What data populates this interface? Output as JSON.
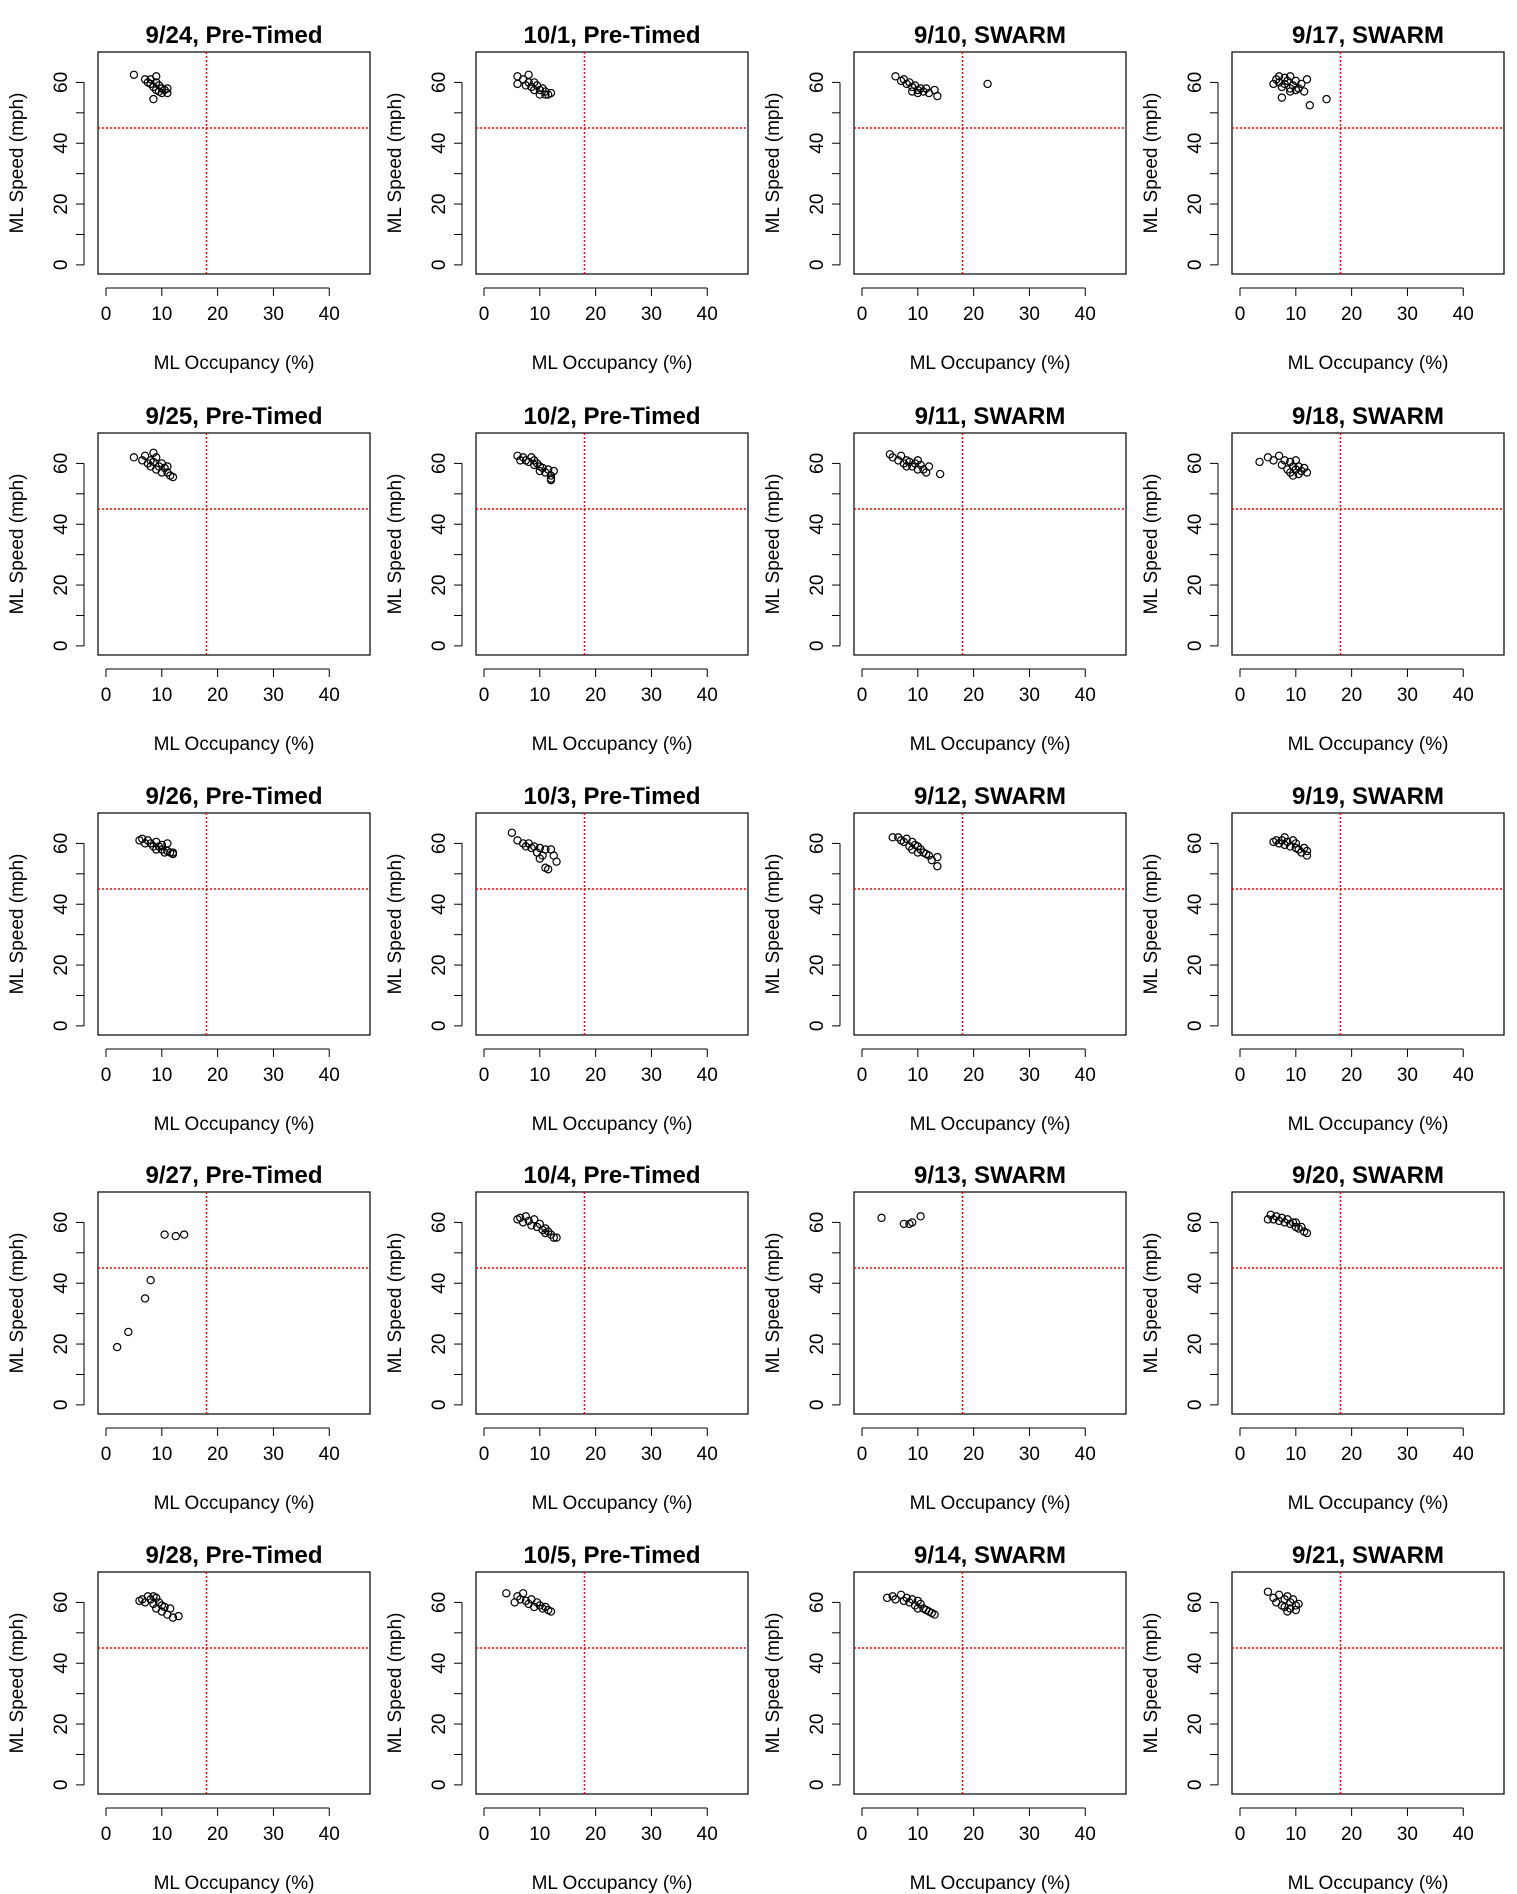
{
  "page": {
    "xlabel": "ML Occupancy (%)",
    "ylabel": "ML Speed (mph)",
    "ref_occupancy": 18,
    "ref_speed": 45,
    "ref_color": "#ff0000",
    "point_color": "#000000"
  },
  "chart_data": [
    {
      "type": "scatter",
      "title": "9/24, Pre-Timed",
      "xlabel": "ML Occupancy (%)",
      "ylabel": "ML Speed (mph)",
      "xlim": [
        0,
        47
      ],
      "ylim": [
        0,
        70
      ],
      "xticks": [
        0,
        10,
        20,
        30,
        40
      ],
      "yticks": [
        0,
        20,
        40,
        60
      ],
      "x": [
        5,
        7,
        7.5,
        8,
        8,
        8.5,
        9,
        9,
        9.5,
        9.5,
        10,
        10,
        10.5,
        11,
        11,
        8.5,
        9
      ],
      "y": [
        62.5,
        61,
        60,
        59.5,
        61,
        58.5,
        60,
        57.5,
        59,
        57,
        58,
        56.5,
        57.5,
        56.5,
        58,
        54.5,
        62
      ]
    },
    {
      "type": "scatter",
      "title": "10/1, Pre-Timed",
      "xlabel": "ML Occupancy (%)",
      "ylabel": "ML Speed (mph)",
      "xlim": [
        0,
        47
      ],
      "ylim": [
        0,
        70
      ],
      "xticks": [
        0,
        10,
        20,
        30,
        40
      ],
      "yticks": [
        0,
        20,
        40,
        60
      ],
      "x": [
        6,
        6,
        7,
        7.5,
        8,
        8,
        8.5,
        9,
        9,
        9.5,
        10,
        10,
        10.5,
        11,
        11.5,
        12,
        11
      ],
      "y": [
        62,
        59.5,
        61,
        59,
        62.5,
        60,
        58.5,
        60,
        57.5,
        59,
        57.5,
        56,
        58,
        56,
        56,
        56.5,
        57
      ]
    },
    {
      "type": "scatter",
      "title": "9/10, SWARM",
      "xlabel": "ML Occupancy (%)",
      "ylabel": "ML Speed (mph)",
      "xlim": [
        0,
        47
      ],
      "ylim": [
        0,
        70
      ],
      "xticks": [
        0,
        10,
        20,
        30,
        40
      ],
      "yticks": [
        0,
        20,
        40,
        60
      ],
      "x": [
        6,
        7,
        7.5,
        8,
        8.5,
        9,
        9.5,
        10,
        10,
        10.5,
        11,
        11.5,
        12,
        13,
        13.5,
        9,
        22.5
      ],
      "y": [
        62,
        60.5,
        61,
        59.5,
        60,
        58.5,
        59,
        57.5,
        56.5,
        58,
        57,
        58,
        56.5,
        57.5,
        55.5,
        57,
        59.5
      ]
    },
    {
      "type": "scatter",
      "title": "9/17, SWARM",
      "xlabel": "ML Occupancy (%)",
      "ylabel": "ML Speed (mph)",
      "xlim": [
        0,
        47
      ],
      "ylim": [
        0,
        70
      ],
      "xticks": [
        0,
        10,
        20,
        30,
        40
      ],
      "yticks": [
        0,
        20,
        40,
        60
      ],
      "x": [
        6,
        6.5,
        7,
        7,
        7.5,
        8,
        8,
        8.5,
        9,
        9,
        9.5,
        10,
        10,
        10.5,
        11,
        11.5,
        12,
        12.5,
        15.5,
        7.5,
        9
      ],
      "y": [
        59.5,
        61,
        60,
        62,
        58.5,
        61.5,
        59.5,
        60.5,
        58,
        62,
        59,
        60.5,
        57.5,
        58,
        59.5,
        57,
        61,
        52.5,
        54.5,
        55,
        57
      ]
    },
    {
      "type": "scatter",
      "title": "9/25, Pre-Timed",
      "xlabel": "ML Occupancy (%)",
      "ylabel": "ML Speed (mph)",
      "xlim": [
        0,
        47
      ],
      "ylim": [
        0,
        70
      ],
      "xticks": [
        0,
        10,
        20,
        30,
        40
      ],
      "yticks": [
        0,
        20,
        40,
        60
      ],
      "x": [
        5,
        6.5,
        7,
        7.5,
        8,
        8,
        8.5,
        9,
        9,
        9.5,
        10,
        10,
        10.5,
        11,
        11,
        11.5,
        12,
        8.5
      ],
      "y": [
        62,
        61,
        62.5,
        60,
        61,
        59,
        60.5,
        58,
        62,
        59,
        60,
        57,
        58.5,
        57,
        59,
        56,
        55.5,
        63.5
      ]
    },
    {
      "type": "scatter",
      "title": "10/2, Pre-Timed",
      "xlabel": "ML Occupancy (%)",
      "ylabel": "ML Speed (mph)",
      "xlim": [
        0,
        47
      ],
      "ylim": [
        0,
        70
      ],
      "xticks": [
        0,
        10,
        20,
        30,
        40
      ],
      "yticks": [
        0,
        20,
        40,
        60
      ],
      "x": [
        6,
        6.5,
        7,
        7.5,
        8,
        8.5,
        9,
        9,
        9.5,
        10,
        10,
        10.5,
        11,
        11.5,
        12,
        12.5,
        12,
        12
      ],
      "y": [
        62.5,
        61,
        62,
        61,
        60.5,
        62,
        59.5,
        61,
        60,
        59,
        57.5,
        58.5,
        57,
        58,
        56,
        57.5,
        54.5,
        55
      ]
    },
    {
      "type": "scatter",
      "title": "9/11, SWARM",
      "xlabel": "ML Occupancy (%)",
      "ylabel": "ML Speed (mph)",
      "xlim": [
        0,
        47
      ],
      "ylim": [
        0,
        70
      ],
      "xticks": [
        0,
        10,
        20,
        30,
        40
      ],
      "yticks": [
        0,
        20,
        40,
        60
      ],
      "x": [
        5,
        5.5,
        6.5,
        7,
        7.5,
        8,
        8,
        8.5,
        9,
        9.5,
        10,
        10,
        10.5,
        11,
        11.5,
        12,
        14
      ],
      "y": [
        63,
        62,
        61,
        62.5,
        60,
        61,
        59,
        60.5,
        59,
        60,
        58,
        61,
        59.5,
        58,
        57,
        59,
        56.5
      ]
    },
    {
      "type": "scatter",
      "title": "9/18, SWARM",
      "xlabel": "ML Occupancy (%)",
      "ylabel": "ML Speed (mph)",
      "xlim": [
        0,
        47
      ],
      "ylim": [
        0,
        70
      ],
      "xticks": [
        0,
        10,
        20,
        30,
        40
      ],
      "yticks": [
        0,
        20,
        40,
        60
      ],
      "x": [
        3.5,
        5,
        6,
        7,
        7.5,
        8,
        8.5,
        9,
        9,
        9.5,
        10,
        10,
        10.5,
        11,
        11.5,
        12,
        9.5,
        10.5
      ],
      "y": [
        60.5,
        62,
        61,
        62.5,
        59.5,
        61,
        58,
        60.5,
        57,
        59,
        61,
        58,
        59,
        57.5,
        58.5,
        57,
        56,
        56.5
      ]
    },
    {
      "type": "scatter",
      "title": "9/26, Pre-Timed",
      "xlabel": "ML Occupancy (%)",
      "ylabel": "ML Speed (mph)",
      "xlim": [
        0,
        47
      ],
      "ylim": [
        0,
        70
      ],
      "xticks": [
        0,
        10,
        20,
        30,
        40
      ],
      "yticks": [
        0,
        20,
        40,
        60
      ],
      "x": [
        6,
        6.5,
        7,
        7.5,
        8,
        8.5,
        9,
        9,
        9.5,
        10,
        10,
        10.5,
        11,
        11.5,
        12,
        12,
        11
      ],
      "y": [
        61,
        61.5,
        60,
        61,
        60,
        59,
        60.5,
        58,
        59,
        58,
        59.5,
        57,
        57.5,
        57,
        56.5,
        57,
        60
      ]
    },
    {
      "type": "scatter",
      "title": "10/3, Pre-Timed",
      "xlabel": "ML Occupancy (%)",
      "ylabel": "ML Speed (mph)",
      "xlim": [
        0,
        47
      ],
      "ylim": [
        0,
        70
      ],
      "xticks": [
        0,
        10,
        20,
        30,
        40
      ],
      "yticks": [
        0,
        20,
        40,
        60
      ],
      "x": [
        5,
        6,
        7,
        7.5,
        8,
        8.5,
        9,
        9.5,
        10,
        10,
        10.5,
        11,
        11,
        11.5,
        12,
        12.5,
        13
      ],
      "y": [
        63.5,
        61,
        60,
        59,
        60,
        58.5,
        59,
        57,
        58.5,
        55,
        56,
        58,
        52,
        51.5,
        58,
        56,
        54
      ]
    },
    {
      "type": "scatter",
      "title": "9/12, SWARM",
      "xlabel": "ML Occupancy (%)",
      "ylabel": "ML Speed (mph)",
      "xlim": [
        0,
        47
      ],
      "ylim": [
        0,
        70
      ],
      "xticks": [
        0,
        10,
        20,
        30,
        40
      ],
      "yticks": [
        0,
        20,
        40,
        60
      ],
      "x": [
        5.5,
        6.5,
        7,
        7.5,
        8,
        8.5,
        9,
        9,
        9.5,
        10,
        10,
        10.5,
        11,
        11.5,
        12,
        12.5,
        13.5,
        13.5
      ],
      "y": [
        62,
        62,
        61,
        60.5,
        61.5,
        59,
        60.5,
        58,
        59.5,
        59,
        57,
        58,
        57,
        56.5,
        56,
        54.5,
        52.5,
        55.5
      ]
    },
    {
      "type": "scatter",
      "title": "9/19, SWARM",
      "xlabel": "ML Occupancy (%)",
      "ylabel": "ML Speed (mph)",
      "xlim": [
        0,
        47
      ],
      "ylim": [
        0,
        70
      ],
      "xticks": [
        0,
        10,
        20,
        30,
        40
      ],
      "yticks": [
        0,
        20,
        40,
        60
      ],
      "x": [
        6,
        6.5,
        7,
        7.5,
        8,
        8,
        8.5,
        9,
        9.5,
        10,
        10,
        10.5,
        11,
        11.5,
        12,
        12
      ],
      "y": [
        60.5,
        61,
        60,
        61,
        59.5,
        62,
        60.5,
        59,
        61,
        58.5,
        60,
        58,
        57,
        58.5,
        56,
        57.5
      ]
    },
    {
      "type": "scatter",
      "title": "9/27, Pre-Timed",
      "xlabel": "ML Occupancy (%)",
      "ylabel": "ML Speed (mph)",
      "xlim": [
        0,
        47
      ],
      "ylim": [
        0,
        70
      ],
      "xticks": [
        0,
        10,
        20,
        30,
        40
      ],
      "yticks": [
        0,
        20,
        40,
        60
      ],
      "x": [
        2,
        4,
        7,
        8,
        10.5,
        12.5,
        14
      ],
      "y": [
        19,
        24,
        35,
        41,
        56,
        55.5,
        56
      ]
    },
    {
      "type": "scatter",
      "title": "10/4, Pre-Timed",
      "xlabel": "ML Occupancy (%)",
      "ylabel": "ML Speed (mph)",
      "xlim": [
        0,
        47
      ],
      "ylim": [
        0,
        70
      ],
      "xticks": [
        0,
        10,
        20,
        30,
        40
      ],
      "yticks": [
        0,
        20,
        40,
        60
      ],
      "x": [
        6,
        6.5,
        7,
        7.5,
        8,
        8.5,
        9,
        9.5,
        10,
        10.5,
        11,
        11,
        11.5,
        12,
        12.5,
        13
      ],
      "y": [
        61,
        61.5,
        60,
        62,
        60.5,
        59,
        61,
        58.5,
        59.5,
        57.5,
        58,
        56.5,
        57,
        56,
        55,
        55
      ]
    },
    {
      "type": "scatter",
      "title": "9/13, SWARM",
      "xlabel": "ML Occupancy (%)",
      "ylabel": "ML Speed (mph)",
      "xlim": [
        0,
        47
      ],
      "ylim": [
        0,
        70
      ],
      "xticks": [
        0,
        10,
        20,
        30,
        40
      ],
      "yticks": [
        0,
        20,
        40,
        60
      ],
      "x": [
        3.5,
        7.5,
        8.5,
        9,
        10.5
      ],
      "y": [
        61.5,
        59.5,
        59.5,
        60,
        62
      ]
    },
    {
      "type": "scatter",
      "title": "9/20, SWARM",
      "xlabel": "ML Occupancy (%)",
      "ylabel": "ML Speed (mph)",
      "xlim": [
        0,
        47
      ],
      "ylim": [
        0,
        70
      ],
      "xticks": [
        0,
        10,
        20,
        30,
        40
      ],
      "yticks": [
        0,
        20,
        40,
        60
      ],
      "x": [
        5,
        5.5,
        6,
        6.5,
        7,
        7.5,
        8,
        8.5,
        9,
        9.5,
        10,
        10,
        10.5,
        11,
        11.5,
        12
      ],
      "y": [
        61,
        62.5,
        61,
        62,
        60.5,
        61.5,
        60,
        61,
        59.5,
        60,
        58.5,
        60,
        58,
        58.5,
        57,
        56.5
      ]
    },
    {
      "type": "scatter",
      "title": "9/28, Pre-Timed",
      "xlabel": "ML Occupancy (%)",
      "ylabel": "ML Speed (mph)",
      "xlim": [
        0,
        47
      ],
      "ylim": [
        0,
        70
      ],
      "xticks": [
        0,
        10,
        20,
        30,
        40
      ],
      "yticks": [
        0,
        20,
        40,
        60
      ],
      "x": [
        6,
        6.5,
        7,
        7.5,
        8,
        8.5,
        9,
        9,
        9.5,
        10,
        10,
        10.5,
        11,
        11.5,
        12,
        13,
        8.5
      ],
      "y": [
        60.5,
        61,
        60,
        62,
        61,
        59.5,
        61.5,
        58,
        60,
        59,
        57,
        58.5,
        56,
        58,
        55,
        55.5,
        62
      ]
    },
    {
      "type": "scatter",
      "title": "10/5, Pre-Timed",
      "xlabel": "ML Occupancy (%)",
      "ylabel": "ML Speed (mph)",
      "xlim": [
        0,
        47
      ],
      "ylim": [
        0,
        70
      ],
      "xticks": [
        0,
        10,
        20,
        30,
        40
      ],
      "yticks": [
        0,
        20,
        40,
        60
      ],
      "x": [
        4,
        5.5,
        6,
        6.5,
        7,
        7.5,
        8,
        8.5,
        9,
        9.5,
        10,
        10.5,
        11,
        11.5,
        12
      ],
      "y": [
        63,
        60,
        62,
        61,
        63,
        60.5,
        59.5,
        61,
        58.5,
        60,
        59,
        58,
        58.5,
        57.5,
        57
      ]
    },
    {
      "type": "scatter",
      "title": "9/14, SWARM",
      "xlabel": "ML Occupancy (%)",
      "ylabel": "ML Speed (mph)",
      "xlim": [
        0,
        47
      ],
      "ylim": [
        0,
        70
      ],
      "xticks": [
        0,
        10,
        20,
        30,
        40
      ],
      "yticks": [
        0,
        20,
        40,
        60
      ],
      "x": [
        4.5,
        5.5,
        6,
        7,
        7.5,
        8,
        8.5,
        9,
        9.5,
        10,
        10,
        10.5,
        11,
        11.5,
        12,
        12.5,
        13
      ],
      "y": [
        61.5,
        62,
        61,
        62.5,
        60.5,
        61.5,
        60,
        61,
        59,
        60.5,
        58,
        59.5,
        58,
        57.5,
        57,
        56.5,
        56
      ]
    },
    {
      "type": "scatter",
      "title": "9/21, SWARM",
      "xlabel": "ML Occupancy (%)",
      "ylabel": "ML Speed (mph)",
      "xlim": [
        0,
        47
      ],
      "ylim": [
        0,
        70
      ],
      "xticks": [
        0,
        10,
        20,
        30,
        40
      ],
      "yticks": [
        0,
        20,
        40,
        60
      ],
      "x": [
        5,
        6,
        6.5,
        7,
        7.5,
        8,
        8,
        8.5,
        9,
        9,
        9.5,
        10,
        10,
        10.5,
        8.5
      ],
      "y": [
        63.5,
        61.5,
        60,
        62.5,
        59,
        61,
        58.5,
        62,
        60,
        58,
        61,
        59,
        57.5,
        59.5,
        57
      ]
    }
  ]
}
